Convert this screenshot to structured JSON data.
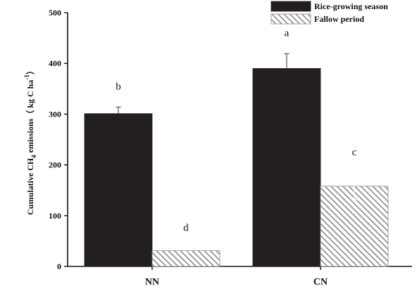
{
  "chart_data": {
    "type": "bar",
    "categories": [
      "NN",
      "CN"
    ],
    "ylabel_parts": {
      "main": "Cumulative CH",
      "sub": "4",
      "mid": " emissions（ kg C ha",
      "sup": "-1",
      "end": "）"
    },
    "ylim": [
      0,
      500
    ],
    "yticks": [
      0,
      100,
      200,
      300,
      400,
      500
    ],
    "grid": false,
    "legend_position": "top-right",
    "series": [
      {
        "name": "Rice-growing season",
        "color": "#231f20",
        "pattern": "solid",
        "values": [
          301,
          390
        ],
        "errors": [
          13,
          29
        ],
        "significance": [
          "b",
          "a"
        ]
      },
      {
        "name": "Fallow period",
        "color": "#9a9a9a",
        "pattern": "hatched",
        "values": [
          31,
          158
        ],
        "errors": [
          4,
          26
        ],
        "significance": [
          "d",
          "c"
        ]
      }
    ]
  }
}
